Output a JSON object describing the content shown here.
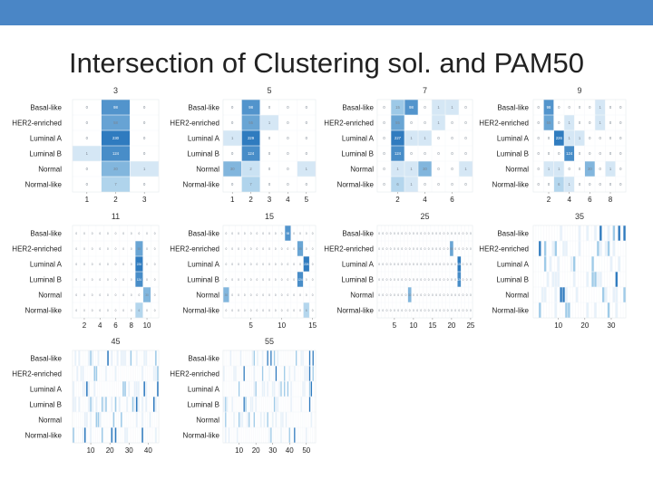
{
  "slide": {
    "title": "Intersection of Clustering sol. and PAM50"
  },
  "colors": {
    "top_bar": "#4a86c6",
    "heat_low": "#ffffff",
    "heat_mid": "#9fcbe8",
    "heat_high": "#2f7bbf",
    "grid": "#e1e6ec"
  },
  "chart_data": [
    {
      "type": "heatmap",
      "title": "3",
      "y_categories": [
        "Basal-like",
        "HER2-enriched",
        "Luminal A",
        "Luminal B",
        "Normal",
        "Normal-like"
      ],
      "x_ticks": [
        "1",
        "2",
        "3"
      ],
      "values": [
        [
          0,
          98,
          0
        ],
        [
          0,
          58,
          0
        ],
        [
          0,
          230,
          0
        ],
        [
          1,
          124,
          0
        ],
        [
          0,
          30,
          1
        ],
        [
          0,
          7,
          0
        ]
      ]
    },
    {
      "type": "heatmap",
      "title": "5",
      "y_categories": [
        "Basal-like",
        "HER2-enriched",
        "Luminal A",
        "Luminal B",
        "Normal",
        "Normal-like"
      ],
      "x_ticks": [
        "1",
        "2",
        "3",
        "4",
        "5"
      ],
      "values": [
        [
          0,
          98,
          0,
          0,
          0
        ],
        [
          0,
          55,
          1,
          0,
          0
        ],
        [
          1,
          229,
          0,
          0,
          0
        ],
        [
          0,
          124,
          0,
          0,
          0
        ],
        [
          30,
          2,
          0,
          0,
          1
        ],
        [
          0,
          7,
          0,
          0,
          0
        ]
      ]
    },
    {
      "type": "heatmap",
      "title": "7",
      "y_categories": [
        "Basal-like",
        "HER2-enriched",
        "Luminal A",
        "Luminal B",
        "Normal",
        "Normal-like"
      ],
      "x_ticks": [
        "2",
        "4",
        "6"
      ],
      "values": [
        [
          0,
          15,
          98,
          0,
          1,
          1,
          0
        ],
        [
          0,
          55,
          0,
          0,
          1,
          0,
          0
        ],
        [
          0,
          227,
          1,
          1,
          0,
          0,
          0
        ],
        [
          0,
          124,
          0,
          0,
          0,
          0,
          0
        ],
        [
          0,
          1,
          1,
          30,
          0,
          0,
          1
        ],
        [
          0,
          6,
          1,
          0,
          0,
          0,
          0
        ]
      ]
    },
    {
      "type": "heatmap",
      "title": "9",
      "y_categories": [
        "Basal-like",
        "HER2-enriched",
        "Luminal A",
        "Luminal B",
        "Normal",
        "Normal-like"
      ],
      "x_ticks": [
        "2",
        "4",
        "6",
        "8"
      ],
      "values": [
        [
          0,
          98,
          0,
          0,
          0,
          0,
          1,
          0,
          0
        ],
        [
          0,
          55,
          0,
          1,
          0,
          0,
          1,
          0,
          0
        ],
        [
          0,
          0,
          226,
          1,
          1,
          0,
          0,
          0,
          0
        ],
        [
          0,
          0,
          0,
          124,
          0,
          0,
          0,
          0,
          0
        ],
        [
          0,
          1,
          1,
          0,
          0,
          30,
          0,
          1,
          0
        ],
        [
          0,
          0,
          6,
          1,
          0,
          0,
          0,
          0,
          0
        ]
      ]
    },
    {
      "type": "heatmap",
      "title": "11",
      "y_categories": [
        "Basal-like",
        "HER2-enriched",
        "Luminal A",
        "Luminal B",
        "Normal",
        "Normal-like"
      ],
      "x_ticks": [
        "2",
        "4",
        "6",
        "8",
        "10"
      ],
      "values": [
        [
          0,
          0,
          0,
          0,
          0,
          0,
          0,
          0,
          0,
          0,
          0
        ],
        [
          0,
          0,
          0,
          0,
          0,
          0,
          0,
          0,
          55,
          0,
          0
        ],
        [
          0,
          0,
          0,
          0,
          0,
          0,
          0,
          0,
          226,
          0,
          0
        ],
        [
          0,
          0,
          0,
          0,
          0,
          0,
          0,
          0,
          124,
          0,
          0
        ],
        [
          0,
          0,
          0,
          0,
          0,
          0,
          0,
          0,
          0,
          30,
          0
        ],
        [
          0,
          0,
          0,
          0,
          0,
          0,
          0,
          0,
          6,
          0,
          0
        ]
      ]
    },
    {
      "type": "heatmap",
      "title": "15",
      "y_categories": [
        "Basal-like",
        "HER2-enriched",
        "Luminal A",
        "Luminal B",
        "Normal",
        "Normal-like"
      ],
      "x_ticks": [
        "5",
        "10",
        "15"
      ],
      "values": [
        [
          0,
          0,
          0,
          0,
          0,
          0,
          0,
          0,
          0,
          0,
          98,
          0,
          0,
          0,
          0
        ],
        [
          0,
          0,
          0,
          0,
          0,
          0,
          0,
          0,
          0,
          0,
          0,
          0,
          55,
          0,
          0
        ],
        [
          0,
          0,
          0,
          0,
          0,
          0,
          0,
          0,
          0,
          0,
          0,
          0,
          0,
          226,
          0
        ],
        [
          0,
          0,
          0,
          0,
          0,
          0,
          0,
          0,
          0,
          0,
          0,
          0,
          124,
          0,
          0
        ],
        [
          30,
          0,
          0,
          0,
          0,
          0,
          0,
          0,
          0,
          0,
          0,
          0,
          0,
          0,
          0
        ],
        [
          0,
          0,
          0,
          0,
          0,
          0,
          0,
          0,
          0,
          0,
          0,
          0,
          0,
          6,
          0
        ]
      ]
    },
    {
      "type": "heatmap",
      "title": "25",
      "y_categories": [
        "Basal-like",
        "HER2-enriched",
        "Luminal A",
        "Luminal B",
        "Normal",
        "Normal-like"
      ],
      "x_ticks": [
        "5",
        "10",
        "15",
        "20",
        "25"
      ],
      "values": [
        [
          0,
          0,
          0,
          0,
          0,
          0,
          0,
          0,
          0,
          0,
          0,
          0,
          0,
          0,
          0,
          0,
          0,
          0,
          0,
          0,
          0,
          0,
          0,
          0,
          0
        ],
        [
          0,
          0,
          0,
          0,
          0,
          0,
          0,
          0,
          0,
          0,
          0,
          0,
          0,
          0,
          0,
          0,
          0,
          0,
          0,
          55,
          0,
          0,
          0,
          0,
          0
        ],
        [
          0,
          0,
          0,
          0,
          0,
          0,
          0,
          0,
          0,
          0,
          0,
          0,
          0,
          0,
          0,
          0,
          0,
          0,
          0,
          0,
          0,
          226,
          0,
          0,
          0
        ],
        [
          0,
          0,
          0,
          0,
          0,
          0,
          0,
          0,
          0,
          0,
          0,
          0,
          0,
          0,
          0,
          0,
          0,
          0,
          0,
          0,
          0,
          124,
          0,
          0,
          0
        ],
        [
          0,
          0,
          0,
          0,
          0,
          0,
          0,
          0,
          30,
          0,
          0,
          0,
          0,
          0,
          0,
          0,
          0,
          0,
          0,
          0,
          0,
          0,
          0,
          0,
          0
        ],
        [
          0,
          0,
          0,
          0,
          0,
          0,
          0,
          0,
          0,
          0,
          0,
          0,
          0,
          0,
          0,
          0,
          0,
          0,
          0,
          0,
          0,
          0,
          0,
          0,
          0
        ]
      ]
    },
    {
      "type": "heatmap",
      "title": "35",
      "y_categories": [
        "Basal-like",
        "HER2-enriched",
        "Luminal A",
        "Luminal B",
        "Normal",
        "Normal-like"
      ],
      "x_ticks": [
        "10",
        "20",
        "30"
      ],
      "values": []
    },
    {
      "type": "heatmap",
      "title": "45",
      "y_categories": [
        "Basal-like",
        "HER2-enriched",
        "Luminal A",
        "Luminal B",
        "Normal",
        "Normal-like"
      ],
      "x_ticks": [
        "10",
        "20",
        "30",
        "40"
      ],
      "values": []
    },
    {
      "type": "heatmap",
      "title": "55",
      "y_categories": [
        "Basal-like",
        "HER2-enriched",
        "Luminal A",
        "Luminal B",
        "Normal",
        "Normal-like"
      ],
      "x_ticks": [
        "10",
        "20",
        "30",
        "40",
        "50"
      ],
      "values": []
    }
  ]
}
